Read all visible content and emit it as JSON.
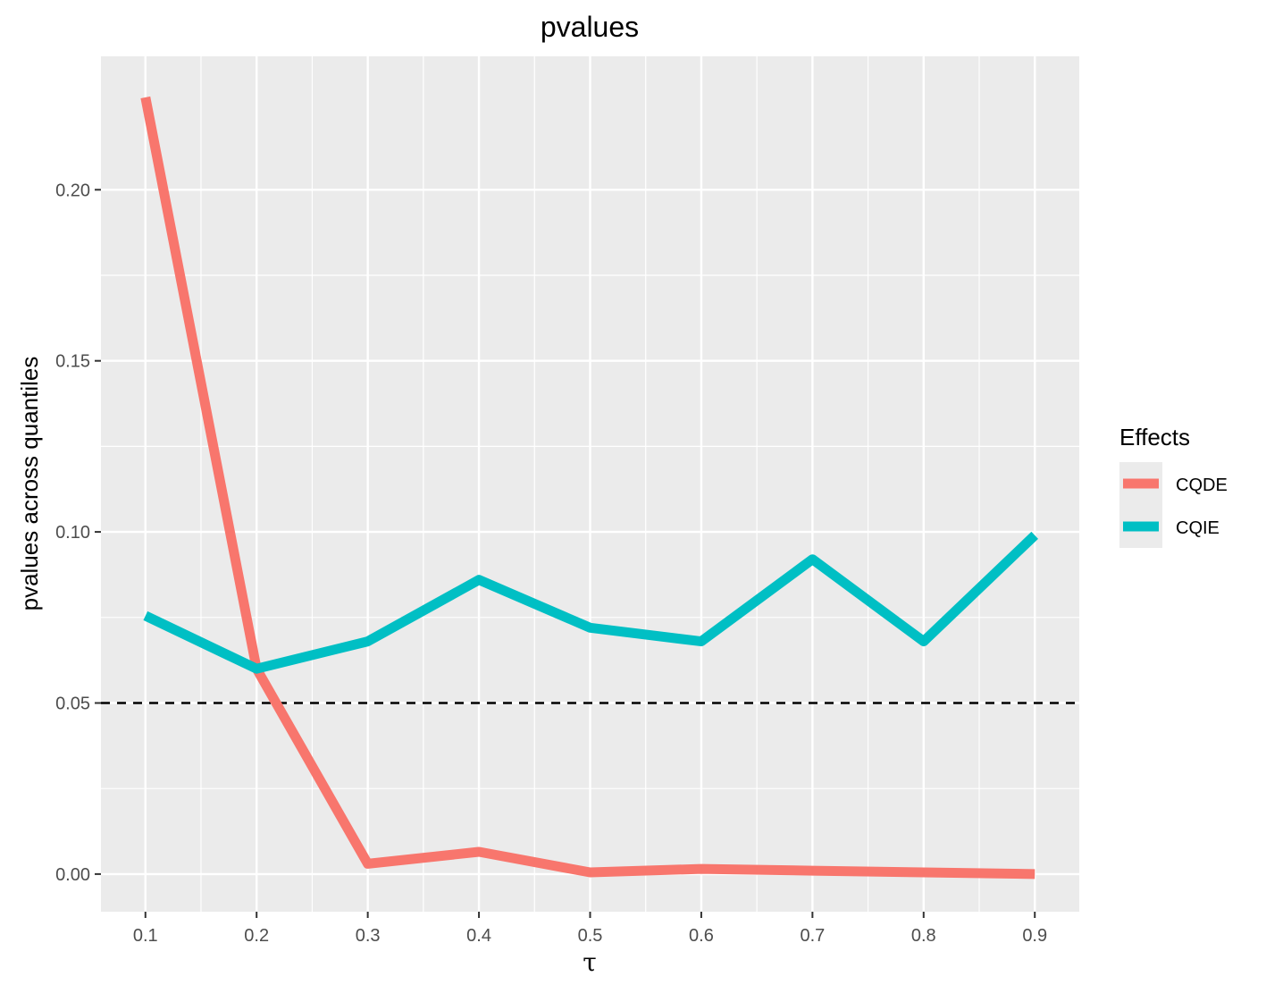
{
  "chart_data": {
    "type": "line",
    "title": "pvalues",
    "xlabel": "τ",
    "ylabel": "pvalues across quantiles",
    "x": [
      0.1,
      0.2,
      0.3,
      0.4,
      0.5,
      0.6,
      0.7,
      0.8,
      0.9
    ],
    "x_tick_labels": [
      "0.1",
      "0.2",
      "0.3",
      "0.4",
      "0.5",
      "0.6",
      "0.7",
      "0.8",
      "0.9"
    ],
    "y_ticks": [
      0.0,
      0.05,
      0.1,
      0.15,
      0.2
    ],
    "y_tick_labels": [
      "0.00",
      "0.05",
      "0.10",
      "0.15",
      "0.20"
    ],
    "xlim": [
      0.06,
      0.94
    ],
    "ylim": [
      -0.011,
      0.239
    ],
    "grid": true,
    "series": [
      {
        "name": "CQDE",
        "color": "#F8766D",
        "values": [
          0.227,
          0.06,
          0.003,
          0.0065,
          0.0005,
          0.0015,
          0.001,
          0.0005,
          0.0
        ]
      },
      {
        "name": "CQIE",
        "color": "#00BFC4",
        "values": [
          0.0755,
          0.06,
          0.068,
          0.086,
          0.072,
          0.068,
          0.092,
          0.068,
          0.099
        ]
      }
    ],
    "reference_line": {
      "y": 0.05,
      "style": "dashed",
      "color": "#000000"
    },
    "legend": {
      "title": "Effects",
      "position": "right"
    },
    "panel_background": "#EBEBEB",
    "grid_color": "#FFFFFF"
  }
}
